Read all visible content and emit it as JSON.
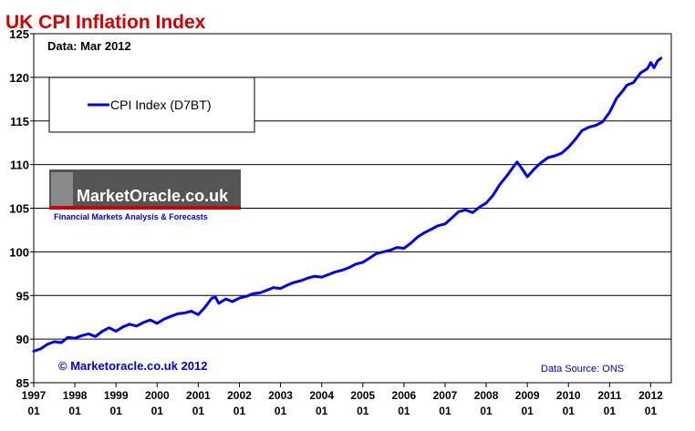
{
  "chart_data": {
    "type": "line",
    "title": "UK CPI Inflation Index",
    "subtitle": "Data: Mar 2012",
    "xlabel": "",
    "ylabel": "",
    "ylim": [
      85,
      125
    ],
    "yticks": [
      85,
      90,
      95,
      100,
      105,
      110,
      115,
      120,
      125
    ],
    "xlim": [
      1997.0,
      2012.5
    ],
    "xticks": [
      {
        "year": "1997",
        "month": "01",
        "x": 1997.0
      },
      {
        "year": "1998",
        "month": "01",
        "x": 1998.0
      },
      {
        "year": "1999",
        "month": "01",
        "x": 1999.0
      },
      {
        "year": "2000",
        "month": "01",
        "x": 2000.0
      },
      {
        "year": "2001",
        "month": "01",
        "x": 2001.0
      },
      {
        "year": "2002",
        "month": "01",
        "x": 2002.0
      },
      {
        "year": "2003",
        "month": "01",
        "x": 2003.0
      },
      {
        "year": "2004",
        "month": "01",
        "x": 2004.0
      },
      {
        "year": "2005",
        "month": "01",
        "x": 2005.0
      },
      {
        "year": "2006",
        "month": "01",
        "x": 2006.0
      },
      {
        "year": "2007",
        "month": "01",
        "x": 2007.0
      },
      {
        "year": "2008",
        "month": "01",
        "x": 2008.0
      },
      {
        "year": "2009",
        "month": "01",
        "x": 2009.0
      },
      {
        "year": "2010",
        "month": "01",
        "x": 2010.0
      },
      {
        "year": "2011",
        "month": "01",
        "x": 2011.0
      },
      {
        "year": "2012",
        "month": "01",
        "x": 2012.0
      }
    ],
    "grid": "horizontal",
    "legend_position": "top-left",
    "series": [
      {
        "name": "CPI Index (D7BT)",
        "color": "#0000ee",
        "points": [
          [
            1997.0,
            88.6
          ],
          [
            1997.17,
            88.9
          ],
          [
            1997.33,
            89.4
          ],
          [
            1997.5,
            89.7
          ],
          [
            1997.67,
            89.6
          ],
          [
            1997.83,
            90.2
          ],
          [
            1998.0,
            90.1
          ],
          [
            1998.17,
            90.4
          ],
          [
            1998.33,
            90.6
          ],
          [
            1998.5,
            90.3
          ],
          [
            1998.67,
            90.9
          ],
          [
            1998.83,
            91.3
          ],
          [
            1999.0,
            90.9
          ],
          [
            1999.17,
            91.4
          ],
          [
            1999.33,
            91.7
          ],
          [
            1999.5,
            91.5
          ],
          [
            1999.67,
            91.9
          ],
          [
            1999.83,
            92.2
          ],
          [
            2000.0,
            91.8
          ],
          [
            2000.17,
            92.3
          ],
          [
            2000.33,
            92.6
          ],
          [
            2000.5,
            92.9
          ],
          [
            2000.67,
            93.0
          ],
          [
            2000.83,
            93.2
          ],
          [
            2001.0,
            92.8
          ],
          [
            2001.17,
            93.7
          ],
          [
            2001.33,
            94.7
          ],
          [
            2001.42,
            94.8
          ],
          [
            2001.5,
            94.1
          ],
          [
            2001.67,
            94.6
          ],
          [
            2001.83,
            94.3
          ],
          [
            2002.0,
            94.7
          ],
          [
            2002.17,
            94.9
          ],
          [
            2002.33,
            95.2
          ],
          [
            2002.5,
            95.3
          ],
          [
            2002.67,
            95.6
          ],
          [
            2002.83,
            95.9
          ],
          [
            2003.0,
            95.8
          ],
          [
            2003.17,
            96.2
          ],
          [
            2003.33,
            96.5
          ],
          [
            2003.5,
            96.7
          ],
          [
            2003.67,
            97.0
          ],
          [
            2003.83,
            97.2
          ],
          [
            2004.0,
            97.1
          ],
          [
            2004.17,
            97.4
          ],
          [
            2004.33,
            97.7
          ],
          [
            2004.5,
            97.9
          ],
          [
            2004.67,
            98.2
          ],
          [
            2004.83,
            98.6
          ],
          [
            2005.0,
            98.8
          ],
          [
            2005.17,
            99.3
          ],
          [
            2005.33,
            99.8
          ],
          [
            2005.5,
            100.0
          ],
          [
            2005.67,
            100.2
          ],
          [
            2005.83,
            100.5
          ],
          [
            2006.0,
            100.4
          ],
          [
            2006.17,
            101.0
          ],
          [
            2006.33,
            101.7
          ],
          [
            2006.5,
            102.2
          ],
          [
            2006.67,
            102.6
          ],
          [
            2006.83,
            103.0
          ],
          [
            2007.0,
            103.2
          ],
          [
            2007.17,
            103.9
          ],
          [
            2007.33,
            104.6
          ],
          [
            2007.5,
            104.8
          ],
          [
            2007.67,
            104.5
          ],
          [
            2007.83,
            105.1
          ],
          [
            2008.0,
            105.6
          ],
          [
            2008.17,
            106.5
          ],
          [
            2008.33,
            107.7
          ],
          [
            2008.5,
            108.7
          ],
          [
            2008.67,
            109.8
          ],
          [
            2008.75,
            110.3
          ],
          [
            2008.83,
            109.8
          ],
          [
            2009.0,
            108.6
          ],
          [
            2009.17,
            109.5
          ],
          [
            2009.33,
            110.2
          ],
          [
            2009.5,
            110.8
          ],
          [
            2009.67,
            111.0
          ],
          [
            2009.83,
            111.3
          ],
          [
            2010.0,
            112.0
          ],
          [
            2010.17,
            112.9
          ],
          [
            2010.33,
            113.9
          ],
          [
            2010.5,
            114.3
          ],
          [
            2010.67,
            114.5
          ],
          [
            2010.83,
            114.9
          ],
          [
            2011.0,
            116.0
          ],
          [
            2011.17,
            117.6
          ],
          [
            2011.33,
            118.5
          ],
          [
            2011.42,
            119.1
          ],
          [
            2011.58,
            119.4
          ],
          [
            2011.75,
            120.5
          ],
          [
            2011.92,
            121.0
          ],
          [
            2012.0,
            121.7
          ],
          [
            2012.08,
            121.1
          ],
          [
            2012.17,
            121.9
          ],
          [
            2012.25,
            122.2
          ]
        ]
      }
    ]
  },
  "watermark": {
    "logo_text": "MarketOracle.co.uk",
    "tagline": "Financial Markets Analysis & Forecasts"
  },
  "copyright": "© Marketoracle.co.uk 2012",
  "source": "Data Source: ONS",
  "colors": {
    "title": "#cc0000",
    "line": "#0000ee",
    "grid": "#000000",
    "footer_text": "#0000cc",
    "logo_bg": "#555555",
    "logo_stripe": "#cc0000"
  }
}
